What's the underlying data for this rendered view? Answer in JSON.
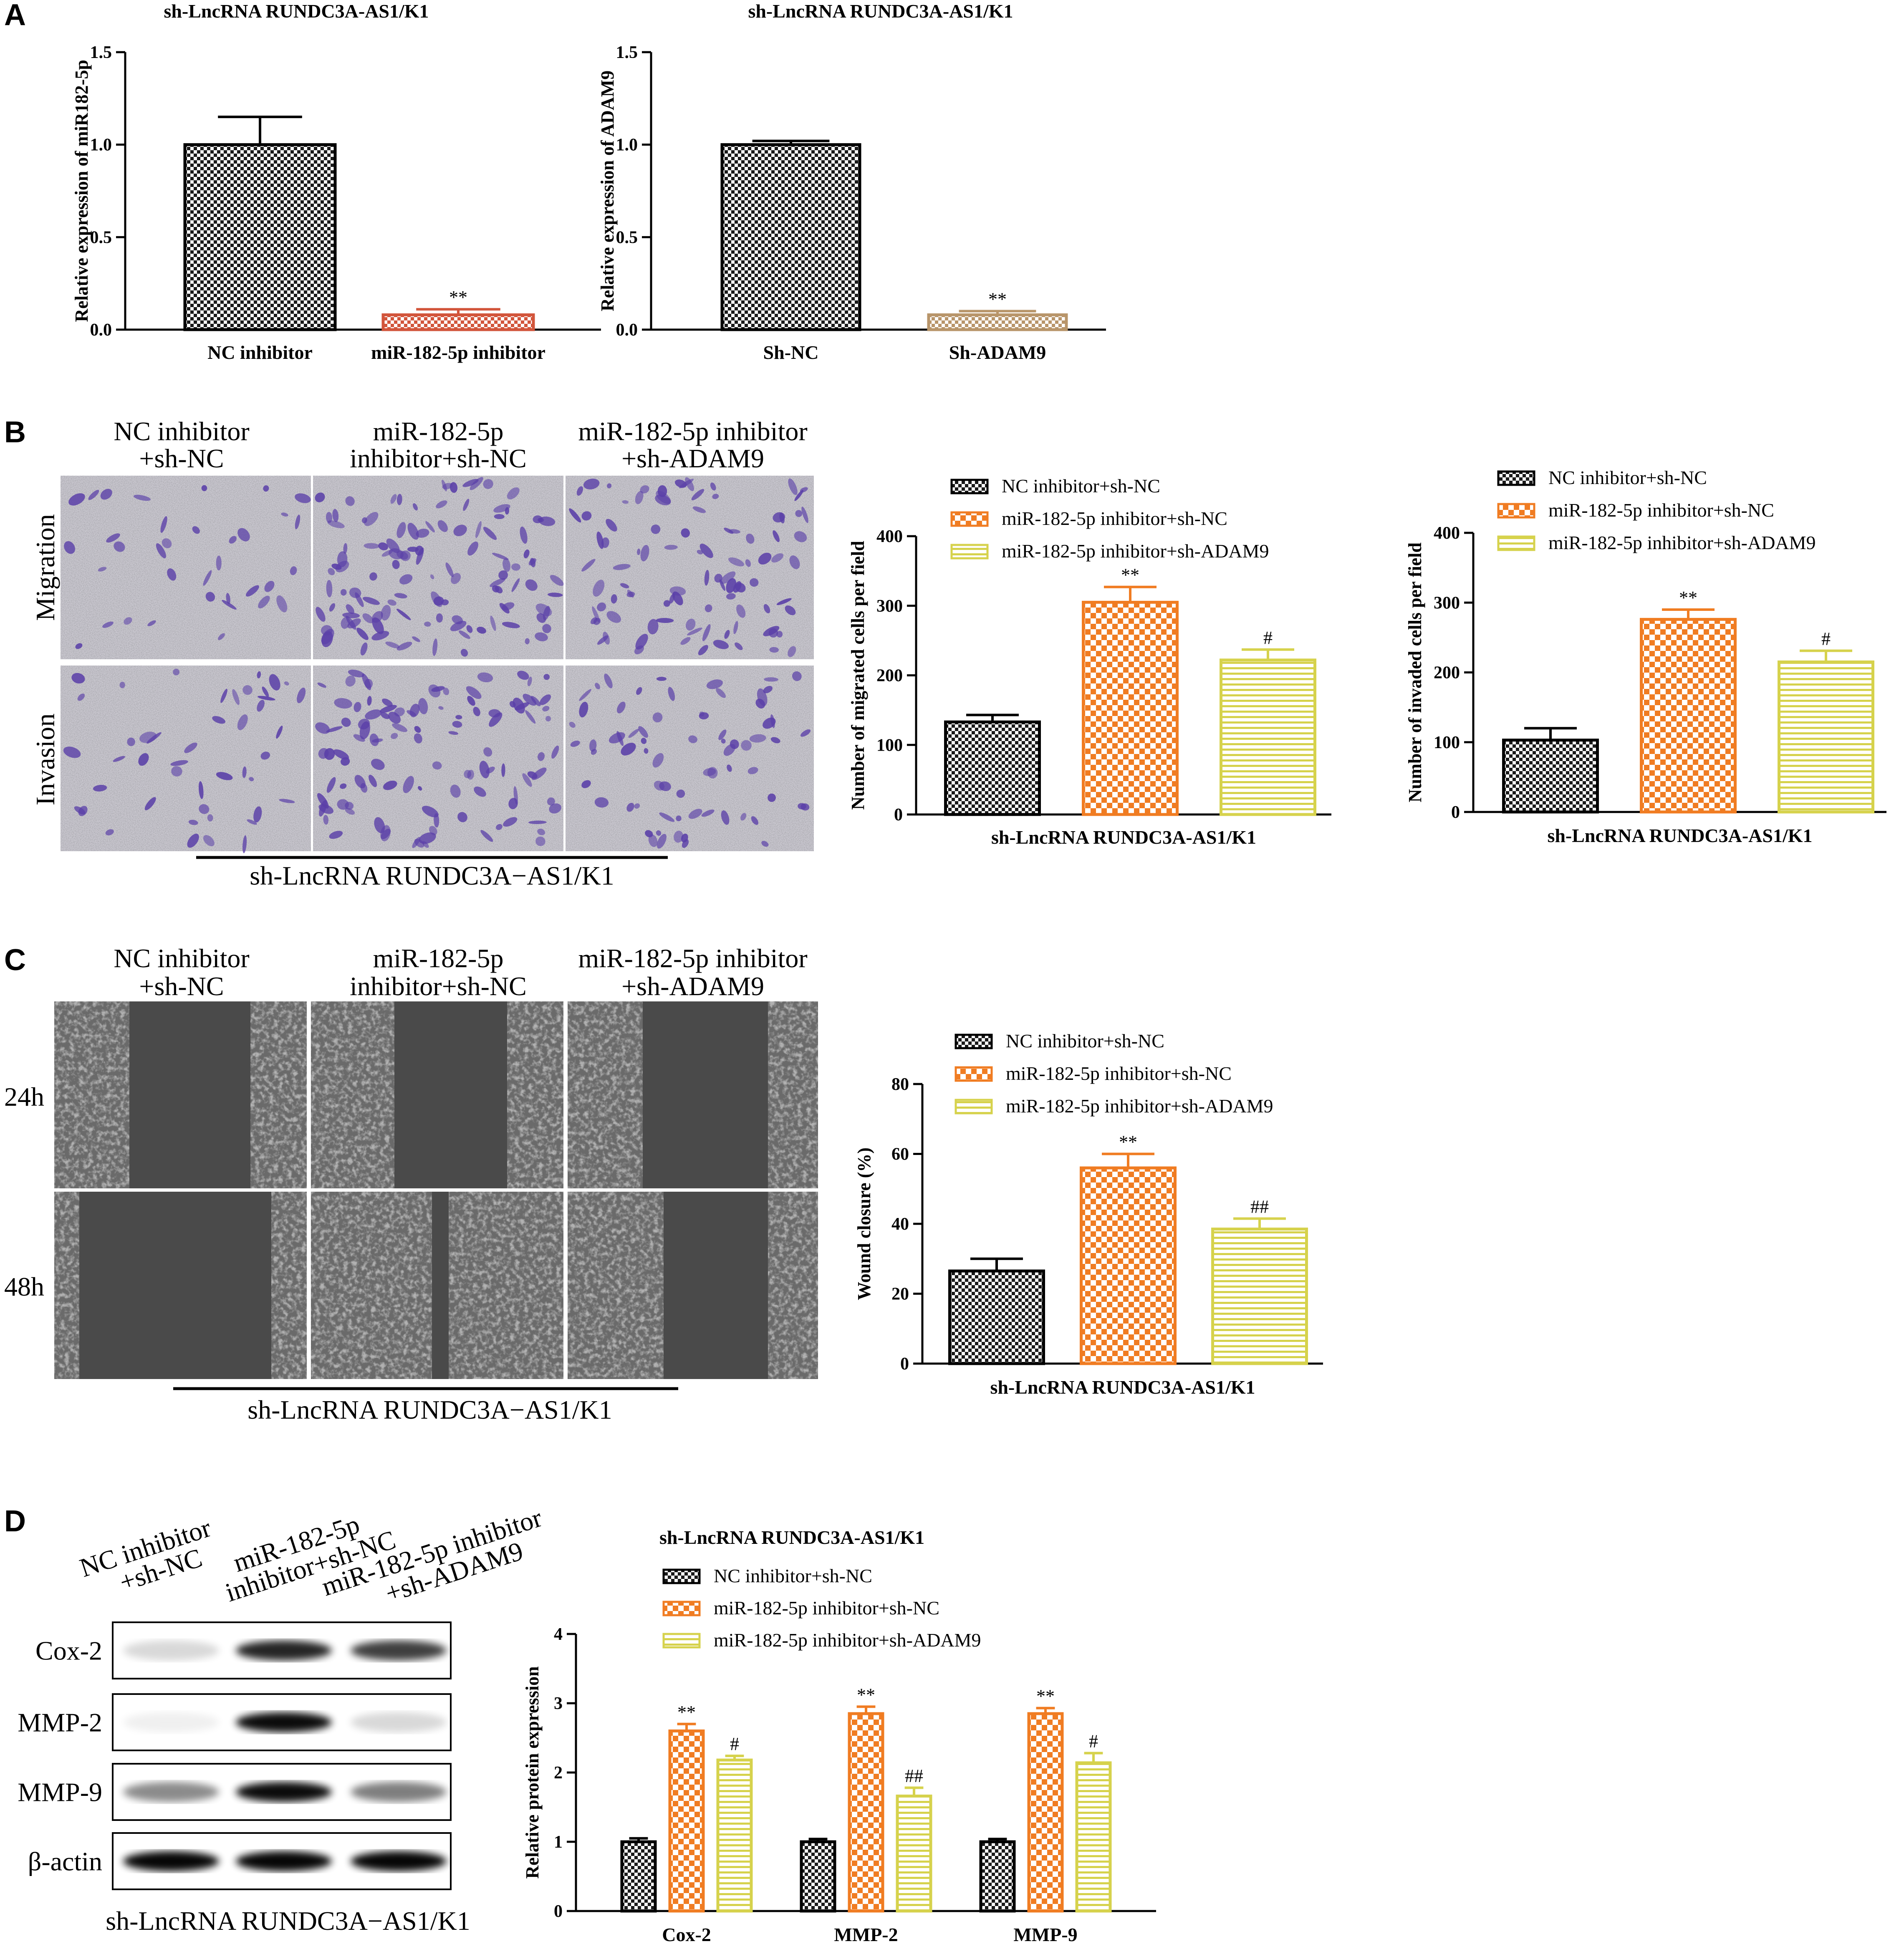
{
  "panels": {
    "A": {
      "letter": "A"
    },
    "B": {
      "letter": "B",
      "col_labels": [
        [
          "NC inhibitor",
          "+sh-NC"
        ],
        [
          "miR-182-5p",
          "inhibitor+sh-NC"
        ],
        [
          "miR-182-5p inhibitor",
          "+sh-ADAM9"
        ]
      ],
      "row_labels": [
        "Migration",
        "Invasion"
      ],
      "bottom_label": "sh-LncRNA RUNDC3A−AS1/K1"
    },
    "C": {
      "letter": "C",
      "col_labels": [
        [
          "NC inhibitor",
          "+sh-NC"
        ],
        [
          "miR-182-5p",
          "inhibitor+sh-NC"
        ],
        [
          "miR-182-5p inhibitor",
          "+sh-ADAM9"
        ]
      ],
      "row_labels": [
        "24h",
        "48h"
      ],
      "bottom_label": "sh-LncRNA RUNDC3A−AS1/K1"
    },
    "D": {
      "letter": "D",
      "lane_labels": [
        [
          "NC inhibitor",
          "+sh-NC"
        ],
        [
          "miR-182-5p",
          "inhibitor+sh-NC"
        ],
        [
          "miR-182-5p inhibitor",
          "+sh-ADAM9"
        ]
      ],
      "band_labels": [
        "Cox-2",
        "MMP-2",
        "MMP-9",
        "β-actin"
      ],
      "bottom_label": "sh-LncRNA RUNDC3A−AS1/K1"
    }
  },
  "colors": {
    "black": "#1a1a1a",
    "orange": "#f07c22",
    "red": "#d2553b",
    "tan": "#b8956a",
    "yellow": "#d6d24c",
    "stain": "#5a3fa8"
  },
  "chart_data": [
    {
      "id": "A1",
      "type": "bar",
      "title": "sh-LncRNA RUNDC3A-AS1/K1",
      "ylabel": "Relative expression of miR182-5p",
      "xlabel": "",
      "categories": [
        "NC inhibitor",
        "miR-182-5p inhibitor"
      ],
      "values": [
        1.0,
        0.08
      ],
      "errors": [
        0.15,
        0.03
      ],
      "significance": [
        "",
        "**"
      ],
      "colors": [
        "black",
        "red"
      ],
      "ylim": [
        0,
        1.5
      ],
      "yticks": [
        "0.0",
        "0.5",
        "1.0",
        "1.5"
      ]
    },
    {
      "id": "A2",
      "type": "bar",
      "title": "sh-LncRNA RUNDC3A-AS1/K1",
      "ylabel": "Relative expression of ADAM9",
      "xlabel": "",
      "categories": [
        "Sh-NC",
        "Sh-ADAM9"
      ],
      "values": [
        1.0,
        0.08
      ],
      "errors": [
        0.02,
        0.02
      ],
      "significance": [
        "",
        "**"
      ],
      "colors": [
        "black",
        "tan"
      ],
      "ylim": [
        0,
        1.5
      ],
      "yticks": [
        "0.0",
        "0.5",
        "1.0",
        "1.5"
      ]
    },
    {
      "id": "B1",
      "type": "bar",
      "ylabel": "Number of migrated cells per field",
      "xlabel": "sh-LncRNA RUNDC3A-AS1/K1",
      "legend": [
        "NC inhibitor+sh-NC",
        "miR-182-5p inhibitor+sh-NC",
        "miR-182-5p inhibitor+sh-ADAM9"
      ],
      "values": [
        133,
        305,
        222
      ],
      "errors": [
        10,
        22,
        15
      ],
      "significance": [
        "",
        "**",
        "#"
      ],
      "colors": [
        "black",
        "orange",
        "yellow"
      ],
      "ylim": [
        0,
        400
      ],
      "yticks": [
        "0",
        "100",
        "200",
        "300",
        "400"
      ]
    },
    {
      "id": "B2",
      "type": "bar",
      "ylabel": "Number of invaded cells per field",
      "xlabel": "sh-LncRNA RUNDC3A-AS1/K1",
      "legend": [
        "NC inhibitor+sh-NC",
        "miR-182-5p inhibitor+sh-NC",
        "miR-182-5p inhibitor+sh-ADAM9"
      ],
      "values": [
        103,
        276,
        215
      ],
      "errors": [
        17,
        14,
        16
      ],
      "significance": [
        "",
        "**",
        "#"
      ],
      "colors": [
        "black",
        "orange",
        "yellow"
      ],
      "ylim": [
        0,
        400
      ],
      "yticks": [
        "0",
        "100",
        "200",
        "300",
        "400"
      ]
    },
    {
      "id": "C1",
      "type": "bar",
      "ylabel": "Wound closure (%)",
      "xlabel": "sh-LncRNA RUNDC3A-AS1/K1",
      "legend": [
        "NC inhibitor+sh-NC",
        "miR-182-5p inhibitor+sh-NC",
        "miR-182-5p inhibitor+sh-ADAM9"
      ],
      "values": [
        26.5,
        56,
        38.5
      ],
      "errors": [
        3.5,
        4,
        3
      ],
      "significance": [
        "",
        "**",
        "##"
      ],
      "colors": [
        "black",
        "orange",
        "yellow"
      ],
      "ylim": [
        0,
        80
      ],
      "yticks": [
        "0",
        "20",
        "40",
        "60",
        "80"
      ]
    },
    {
      "id": "D1",
      "type": "bar",
      "title": "sh-LncRNA RUNDC3A-AS1/K1",
      "ylabel": "Relative protein expression",
      "categories": [
        "Cox-2",
        "MMP-2",
        "MMP-9"
      ],
      "series": [
        {
          "name": "NC inhibitor+sh-NC",
          "values": [
            1.0,
            1.0,
            1.0
          ],
          "errors": [
            0.05,
            0.04,
            0.04
          ],
          "significance": [
            "",
            "",
            ""
          ]
        },
        {
          "name": "miR-182-5p inhibitor+sh-NC",
          "values": [
            2.6,
            2.85,
            2.85
          ],
          "errors": [
            0.1,
            0.1,
            0.08
          ],
          "significance": [
            "**",
            "**",
            "**"
          ]
        },
        {
          "name": "miR-182-5p inhibitor+sh-ADAM9",
          "values": [
            2.18,
            1.66,
            2.14
          ],
          "errors": [
            0.06,
            0.12,
            0.14
          ],
          "significance": [
            "#",
            "##",
            "#"
          ]
        }
      ],
      "colors": [
        "black",
        "orange",
        "yellow"
      ],
      "ylim": [
        0,
        4
      ],
      "yticks": [
        "0",
        "1",
        "2",
        "3",
        "4"
      ]
    }
  ]
}
